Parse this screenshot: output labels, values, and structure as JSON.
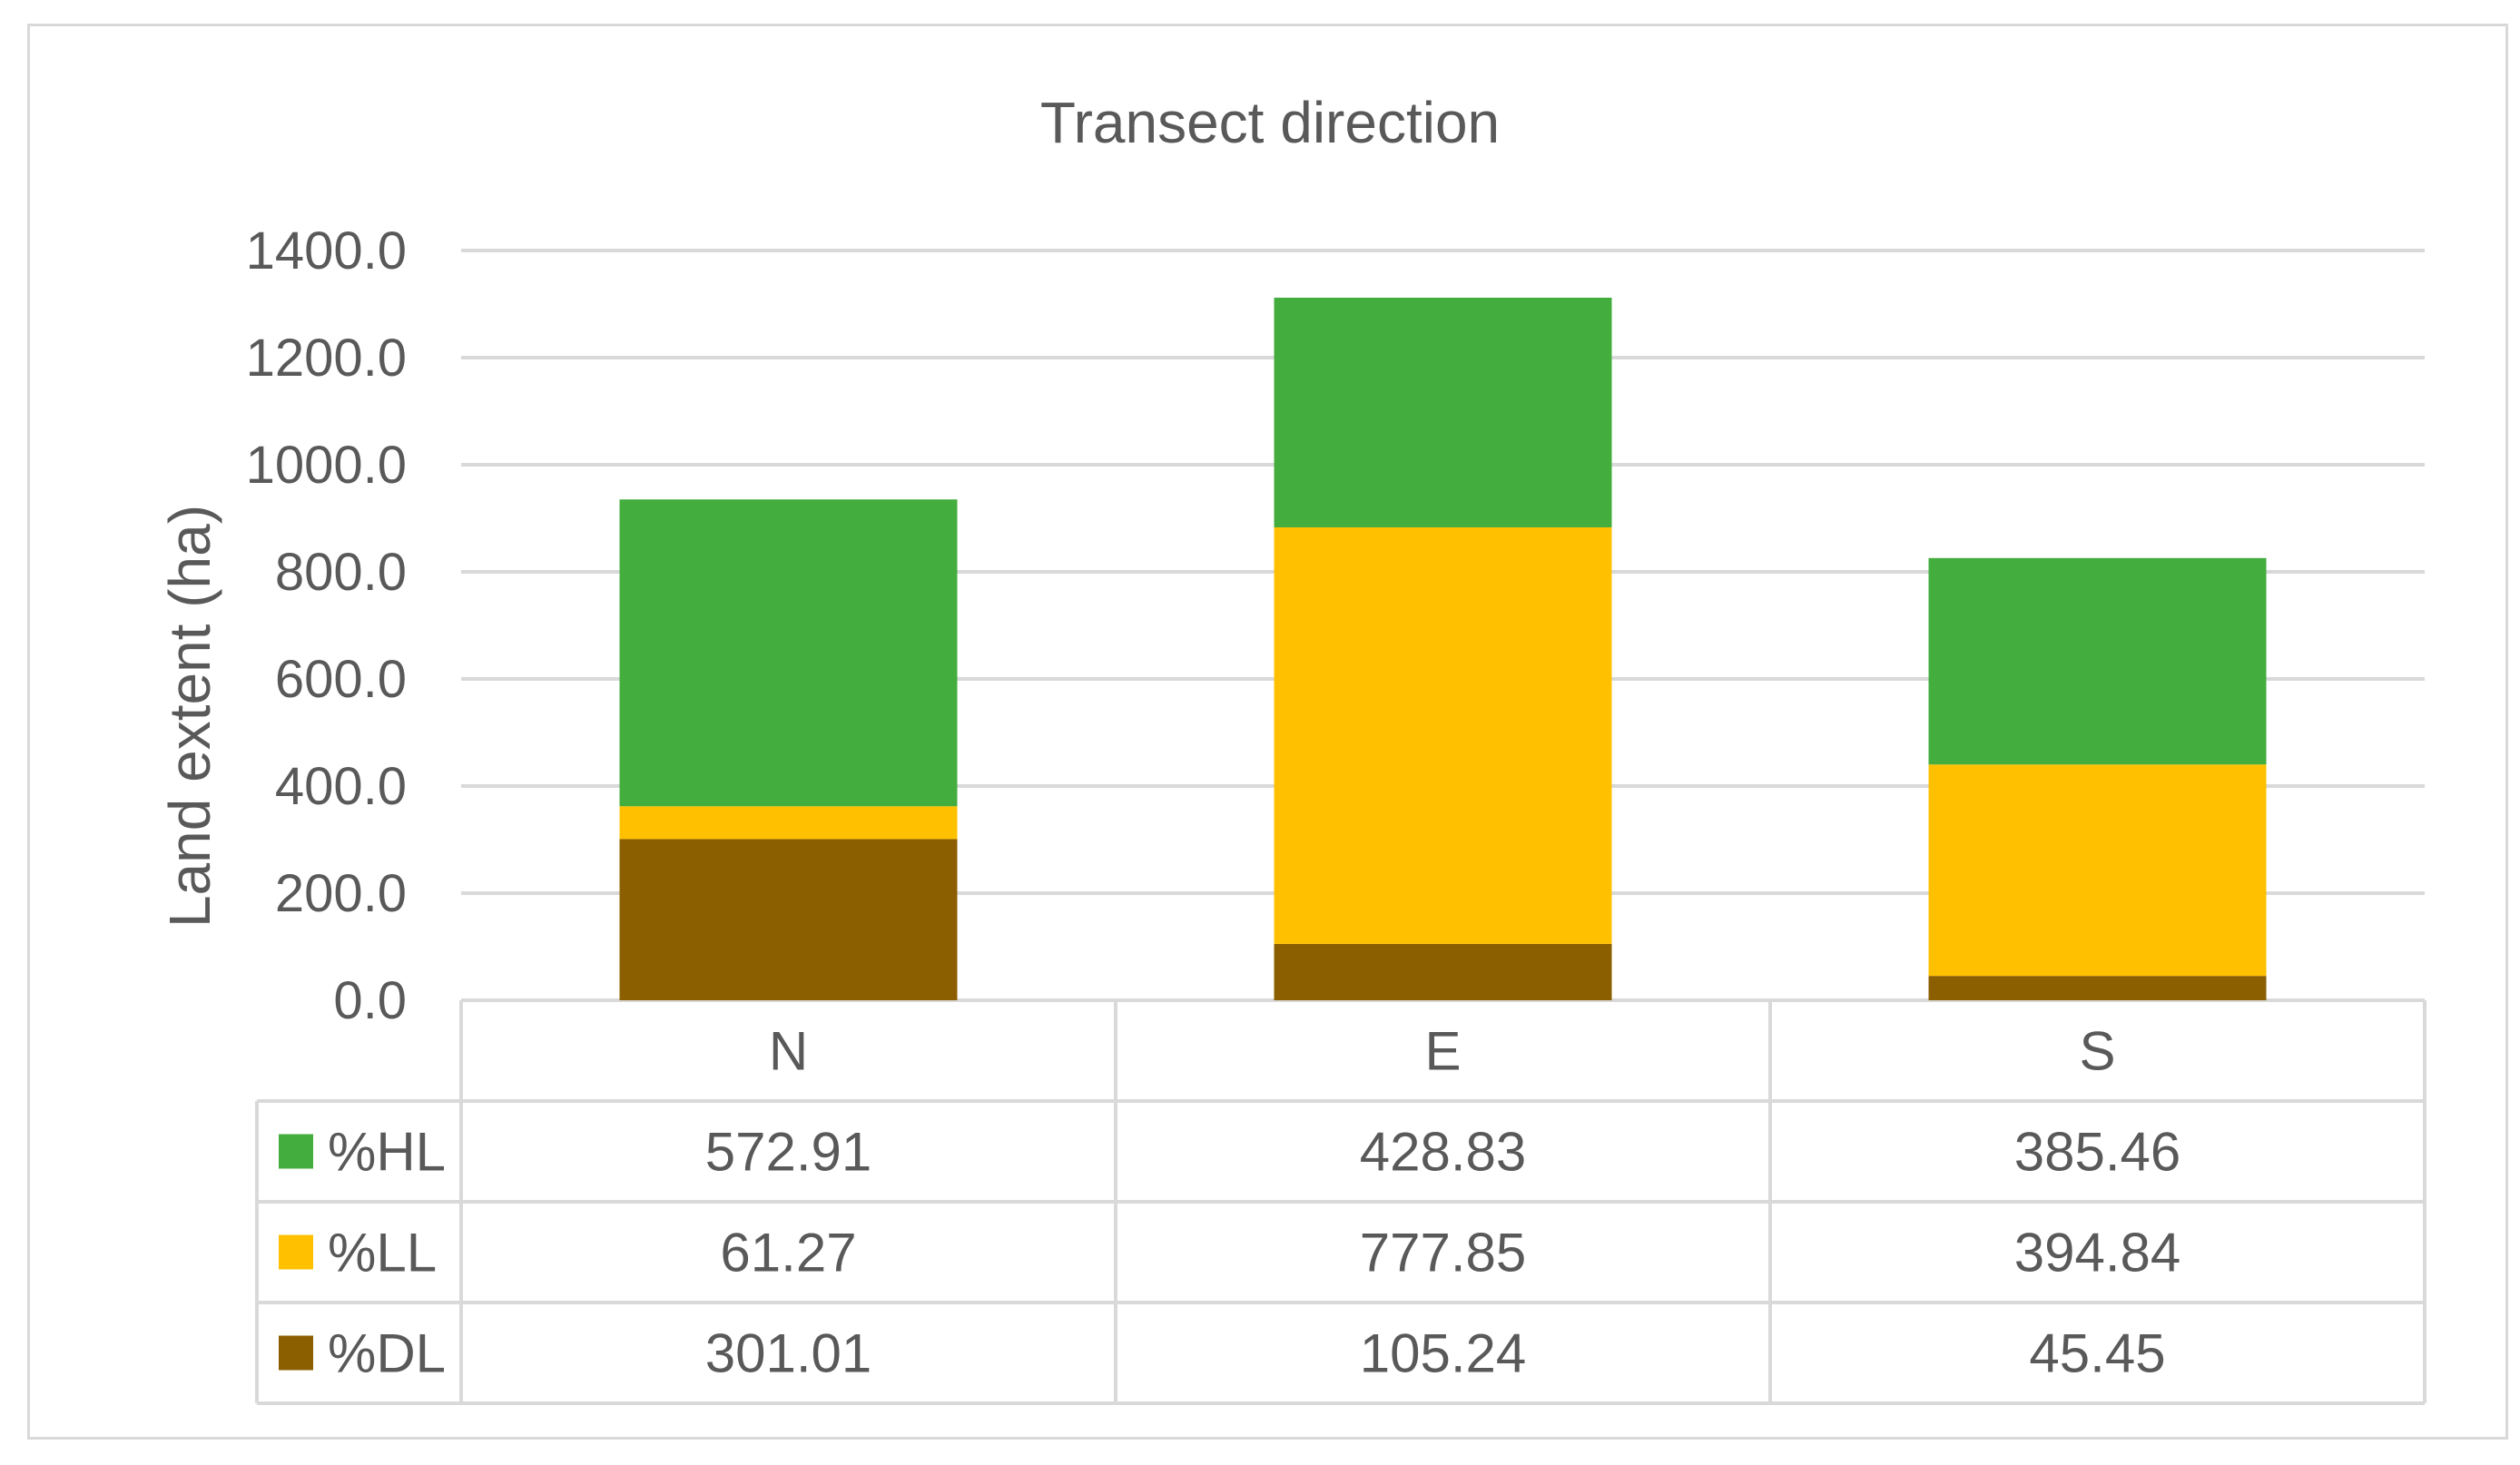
{
  "chart_data": {
    "type": "bar",
    "stacked": true,
    "title": "Transect direction",
    "xlabel": "",
    "ylabel": "Land extent (ha)",
    "ylim": [
      0,
      1400
    ],
    "yticks": [
      "0.0",
      "200.0",
      "400.0",
      "600.0",
      "800.0",
      "1000.0",
      "1200.0",
      "1400.0"
    ],
    "grid": true,
    "legend": "data-table",
    "categories": [
      "N",
      "E",
      "S"
    ],
    "series": [
      {
        "name": "%DL",
        "color": "#8b5e00",
        "values": [
          301.01,
          105.24,
          45.45
        ],
        "labels": [
          "301.01",
          "105.24",
          "45.45"
        ]
      },
      {
        "name": "%LL",
        "color": "#ffc000",
        "values": [
          61.27,
          777.85,
          394.84
        ],
        "labels": [
          "61.27",
          "777.85",
          "394.84"
        ]
      },
      {
        "name": "%HL",
        "color": "#43ad3d",
        "values": [
          572.91,
          428.83,
          385.46
        ],
        "labels": [
          "572.91",
          "428.83",
          "385.46"
        ]
      }
    ],
    "table_order": [
      "%HL",
      "%LL",
      "%DL"
    ]
  }
}
